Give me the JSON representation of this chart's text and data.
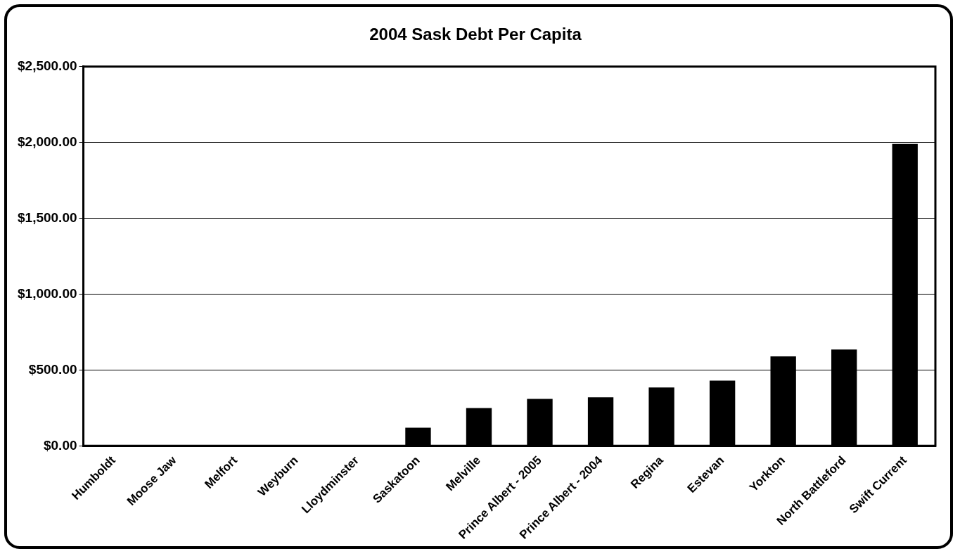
{
  "chart_data": {
    "type": "bar",
    "title": "2004 Sask Debt Per Capita",
    "categories": [
      "Humboldt",
      "Moose Jaw",
      "Melfort",
      "Weyburn",
      "Lloydminster",
      "Saskatoon",
      "Melville",
      "Prince Albert - 2005",
      "Prince Albert - 2004",
      "Regina",
      "Estevan",
      "Yorkton",
      "North Battleford",
      "Swift Current"
    ],
    "values": [
      0,
      0,
      0,
      0,
      0,
      120,
      250,
      310,
      320,
      385,
      430,
      590,
      635,
      1990
    ],
    "color": "#000000",
    "ylim": [
      0,
      2500
    ],
    "yticks": [
      {
        "value": 0,
        "label": "$0.00"
      },
      {
        "value": 500,
        "label": "$500.00"
      },
      {
        "value": 1000,
        "label": "$1,000.00"
      },
      {
        "value": 1500,
        "label": "$1,500.00"
      },
      {
        "value": 2000,
        "label": "$2,000.00"
      },
      {
        "value": 2500,
        "label": "$2,500.00"
      }
    ],
    "grid": "y",
    "legend": false
  }
}
